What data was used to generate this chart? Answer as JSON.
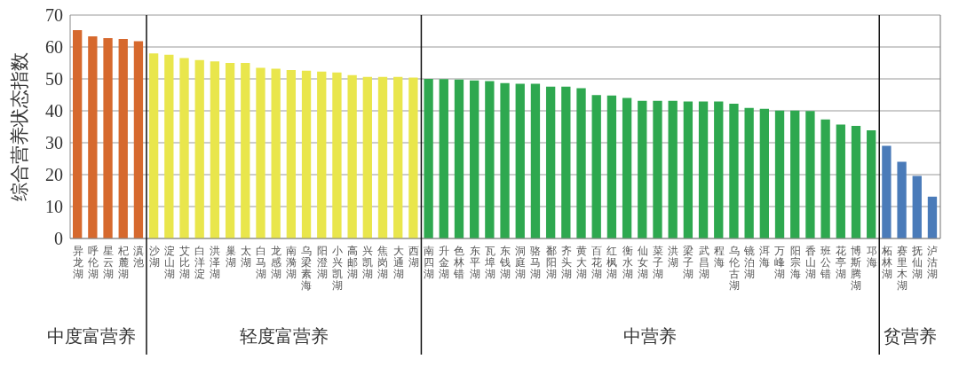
{
  "chart_data": {
    "type": "bar",
    "ylabel": "综合营养状态指数",
    "categories": [
      "异龙湖",
      "呼伦湖",
      "星云湖",
      "杞麓湖",
      "滇池",
      "沙湖",
      "淀山湖",
      "艾比湖",
      "白洋淀",
      "洪泽湖",
      "巢湖",
      "太湖",
      "白马湖",
      "龙感湖",
      "南漪湖",
      "乌梁素海",
      "阳澄湖",
      "小兴凯湖",
      "高邮湖",
      "兴凯湖",
      "焦岗湖",
      "大通湖",
      "西湖",
      "南四湖",
      "升金湖",
      "色林错",
      "东平湖",
      "瓦埠湖",
      "东钱湖",
      "洞庭湖",
      "骆马湖",
      "鄱阳湖",
      "齐头湖",
      "黄大湖",
      "百花湖",
      "红枫湖",
      "衡水湖",
      "仙女湖",
      "菜子湖",
      "洪湖",
      "梁子湖",
      "武昌湖",
      "程海",
      "乌伦古湖",
      "镜泊湖",
      "洱海",
      "万峰湖",
      "阳宗海",
      "香山湖",
      "班公错",
      "花亭湖",
      "博斯腾湖",
      "邛海",
      "柘林湖",
      "赛里木湖",
      "抚仙湖",
      "泸沽湖"
    ],
    "values": [
      65.3,
      63.3,
      62.8,
      62.5,
      61.8,
      58.0,
      57.6,
      56.5,
      55.9,
      55.5,
      55.0,
      55.0,
      53.5,
      53.2,
      52.8,
      52.6,
      52.3,
      52.0,
      51.2,
      50.6,
      50.6,
      50.6,
      50.4,
      50.0,
      49.9,
      49.8,
      49.5,
      49.3,
      48.7,
      48.5,
      48.5,
      47.6,
      47.6,
      47.1,
      44.9,
      44.8,
      44.0,
      43.1,
      43.1,
      43.1,
      42.9,
      42.9,
      42.9,
      42.2,
      40.9,
      40.6,
      40.1,
      40.1,
      39.9,
      37.3,
      35.7,
      35.3,
      33.9,
      29.0,
      24.0,
      19.6,
      13.1
    ],
    "colors": [
      "#d6692e",
      "#d6692e",
      "#d6692e",
      "#d6692e",
      "#d6692e",
      "#e9e64c",
      "#e9e64c",
      "#e9e64c",
      "#e9e64c",
      "#e9e64c",
      "#e9e64c",
      "#e9e64c",
      "#e9e64c",
      "#e9e64c",
      "#e9e64c",
      "#e9e64c",
      "#e9e64c",
      "#e9e64c",
      "#e9e64c",
      "#e9e64c",
      "#e9e64c",
      "#e9e64c",
      "#e9e64c",
      "#2ea84f",
      "#2ea84f",
      "#2ea84f",
      "#2ea84f",
      "#2ea84f",
      "#2ea84f",
      "#2ea84f",
      "#2ea84f",
      "#2ea84f",
      "#2ea84f",
      "#2ea84f",
      "#2ea84f",
      "#2ea84f",
      "#2ea84f",
      "#2ea84f",
      "#2ea84f",
      "#2ea84f",
      "#2ea84f",
      "#2ea84f",
      "#2ea84f",
      "#2ea84f",
      "#2ea84f",
      "#2ea84f",
      "#2ea84f",
      "#2ea84f",
      "#2ea84f",
      "#2ea84f",
      "#2ea84f",
      "#2ea84f",
      "#2ea84f",
      "#4a7bb9",
      "#4a7bb9",
      "#4a7bb9",
      "#4a7bb9"
    ],
    "annotations": [
      "中度富营养",
      "轻度富营养",
      "中营养",
      "贫营养"
    ],
    "ylim": [
      0,
      70
    ],
    "yticks": [
      0,
      10,
      20,
      30,
      40,
      50,
      60,
      70
    ],
    "grid": "y"
  }
}
